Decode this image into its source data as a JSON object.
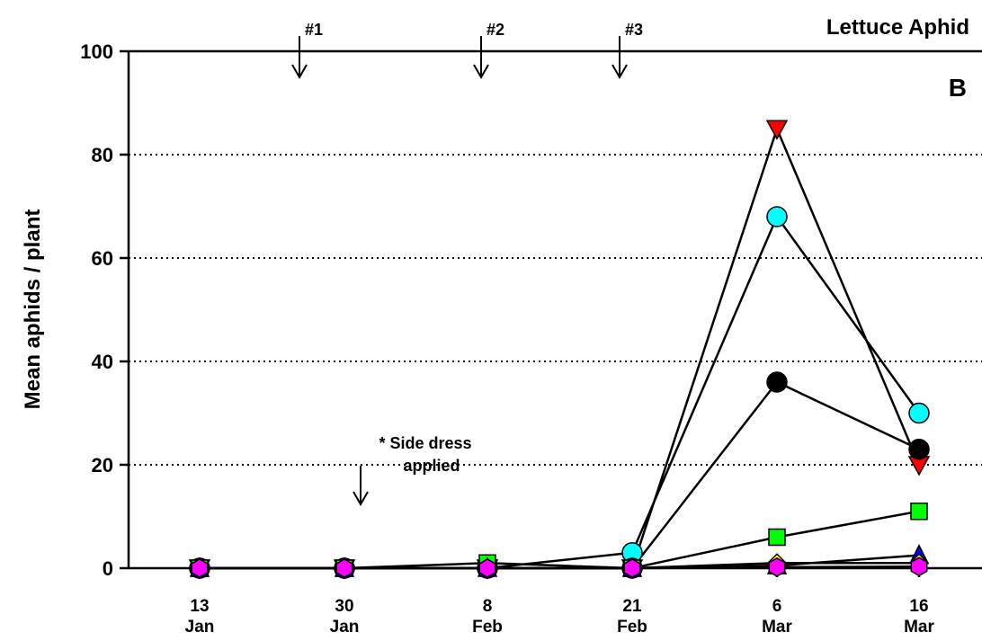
{
  "chart_data": {
    "type": "line",
    "title": "Lettuce Aphid",
    "panel_label": "B",
    "ylabel": "Mean aphids / plant",
    "xlabel": "",
    "ylim": [
      0,
      100
    ],
    "yticks": [
      0,
      20,
      40,
      60,
      80,
      100
    ],
    "dotted_gridlines": [
      20,
      40,
      60,
      80
    ],
    "categories": [
      {
        "day": "13",
        "month": "Jan"
      },
      {
        "day": "30",
        "month": "Jan"
      },
      {
        "day": "8",
        "month": "Feb"
      },
      {
        "day": "21",
        "month": "Feb"
      },
      {
        "day": "6",
        "month": "Mar"
      },
      {
        "day": "16",
        "month": "Mar"
      }
    ],
    "series": [
      {
        "marker": "triangle-down",
        "color": "#ff0000",
        "values": [
          0,
          0,
          0,
          0,
          85,
          20
        ]
      },
      {
        "marker": "circle",
        "color": "#00ffff",
        "values": [
          0,
          0,
          0,
          3,
          68,
          30
        ]
      },
      {
        "marker": "circle",
        "color": "#000000",
        "values": [
          0,
          0,
          0,
          0,
          36,
          23
        ]
      },
      {
        "marker": "square",
        "color": "#00ff00",
        "values": [
          0,
          0,
          1,
          0,
          6,
          11
        ]
      },
      {
        "marker": "triangle-up",
        "color": "#0000ff",
        "values": [
          0,
          0,
          0,
          0,
          0.5,
          2.5
        ]
      },
      {
        "marker": "diamond",
        "color": "#ffff00",
        "values": [
          0,
          0,
          0,
          0,
          1,
          1
        ]
      },
      {
        "marker": "hexagon",
        "color": "#ff00ff",
        "values": [
          0,
          0,
          0,
          0,
          0.2,
          0.3
        ]
      }
    ],
    "applications": [
      {
        "label": "#1",
        "x_between": [
          0,
          1
        ],
        "position": 0.6
      },
      {
        "label": "#2",
        "x_between": [
          1,
          2
        ],
        "position": 0.0
      },
      {
        "label": "#3",
        "x_between": [
          2,
          3
        ],
        "position": 0.0
      }
    ],
    "annotation": {
      "line1": "* Side dress",
      "line2": "applied"
    }
  }
}
